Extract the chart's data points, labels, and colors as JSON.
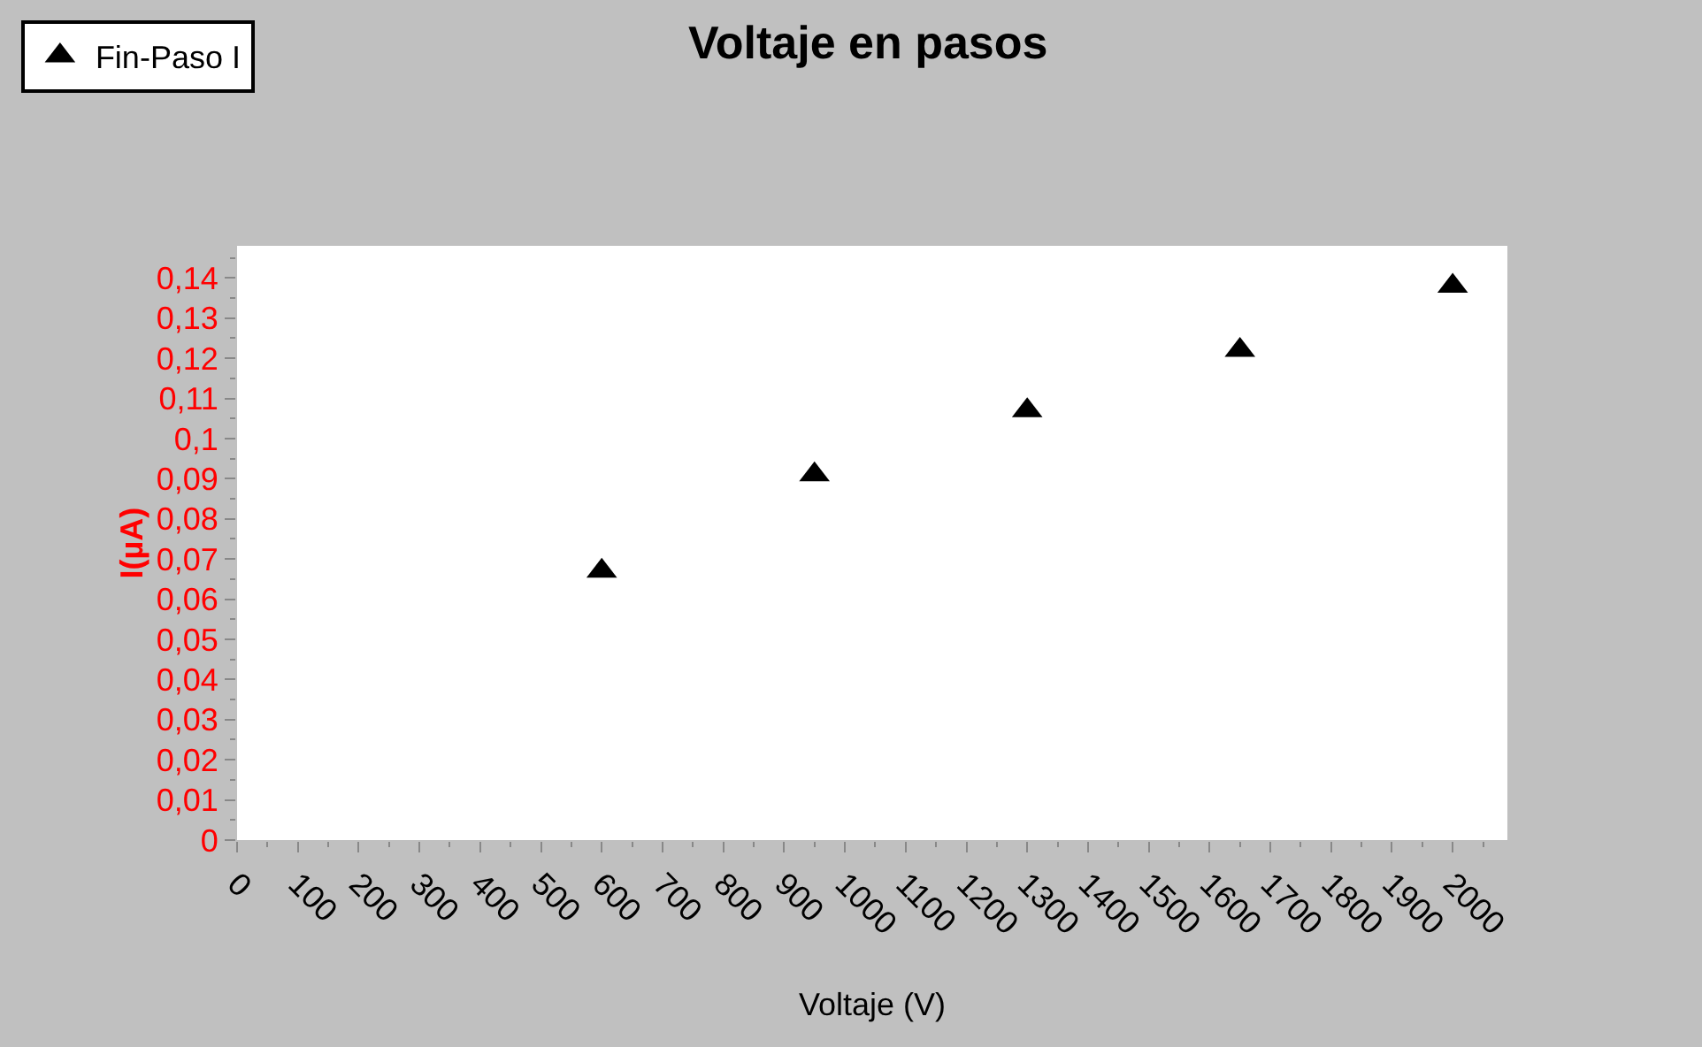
{
  "chart_data": {
    "type": "scatter",
    "title": "Voltaje en pasos",
    "xlabel": "Voltaje (V)",
    "ylabel": "I(µA)",
    "x": [
      600,
      950,
      1300,
      1650,
      2000
    ],
    "series": [
      {
        "name": "Fin-Paso I",
        "color": "#000000",
        "values": [
          0.067,
          0.091,
          0.107,
          0.122,
          0.138
        ]
      }
    ],
    "marker": "triangle",
    "legend": "top left",
    "grid": false,
    "xlim": [
      0,
      2090
    ],
    "xticks": [
      0,
      100,
      200,
      300,
      400,
      500,
      600,
      700,
      800,
      900,
      1000,
      1100,
      1200,
      1300,
      1400,
      1500,
      1600,
      1700,
      1800,
      1900,
      2000
    ],
    "ylim": [
      0,
      0.148
    ],
    "yticks": [
      0,
      {
        "value": 0.01,
        "label": "0,01"
      },
      {
        "value": 0.02,
        "label": "0,02"
      },
      {
        "value": 0.03,
        "label": "0,03"
      },
      {
        "value": 0.04,
        "label": "0,04"
      },
      {
        "value": 0.05,
        "label": "0,05"
      },
      {
        "value": 0.06,
        "label": "0,06"
      },
      {
        "value": 0.07,
        "label": "0,07"
      },
      {
        "value": 0.08,
        "label": "0,08"
      },
      {
        "value": 0.09,
        "label": "0,09"
      },
      {
        "value": 0.1,
        "label": "0,1"
      },
      {
        "value": 0.11,
        "label": "0,11"
      },
      {
        "value": 0.12,
        "label": "0,12"
      },
      {
        "value": 0.13,
        "label": "0,13"
      },
      {
        "value": 0.14,
        "label": "0,14"
      }
    ]
  }
}
